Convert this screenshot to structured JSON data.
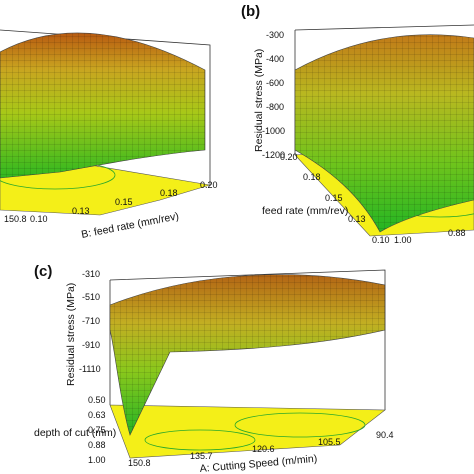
{
  "chart_data": [
    {
      "type": "surface",
      "panel_label": "",
      "xlabel": "B: feed rate (mm/rev)",
      "x_ticks": [
        "0.10",
        "0.13",
        "0.15",
        "0.18",
        "0.20"
      ],
      "second_axis_ticks": [
        "150.8"
      ],
      "ylabel": "",
      "y_ticks": []
    },
    {
      "type": "surface",
      "panel_label": "(b)",
      "xlabel": "feed rate (mm/rev)",
      "x_ticks": [
        "0.10",
        "0.13",
        "0.15",
        "0.18",
        "0.20"
      ],
      "second_axis_ticks": [
        "1.00",
        "0.88"
      ],
      "ylabel": "Residual stress (MPa)",
      "y_ticks": [
        "-300",
        "-400",
        "-600",
        "-800",
        "-1000",
        "-1200"
      ]
    },
    {
      "type": "surface",
      "panel_label": "(c)",
      "xlabel": "A: Cutting Speed (m/min)",
      "x_ticks": [
        "150.8",
        "135.7",
        "120.6",
        "105.5",
        "90.4"
      ],
      "second_axis_label": "depth of cut (mm)",
      "second_axis_ticks": [
        "0.50",
        "0.63",
        "0.75",
        "0.88",
        "1.00"
      ],
      "ylabel": "Residual stress (MPa)",
      "y_ticks": [
        "-310",
        "-510",
        "-710",
        "-910",
        "-1110"
      ]
    }
  ]
}
